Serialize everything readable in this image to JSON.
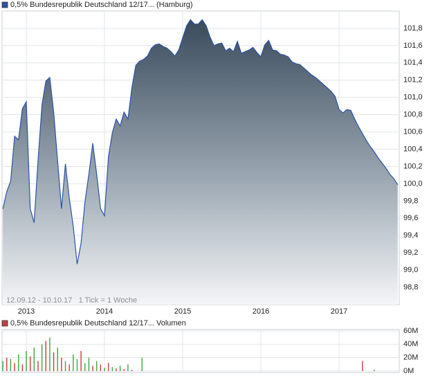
{
  "chart_data": [
    {
      "type": "area",
      "annotation": "12.09.12 - 10.10.17   1 Tick = 1 Woche",
      "xlim": [
        2012.69,
        2017.77
      ],
      "xticks": [
        2013,
        2014,
        2015,
        2016,
        2017
      ],
      "ylim": [
        98.6,
        102.0
      ],
      "yticks": [
        {
          "value": 98.8,
          "label": "98,8"
        },
        {
          "value": 99.0,
          "label": "99,0"
        },
        {
          "value": 99.2,
          "label": "99,2"
        },
        {
          "value": 99.4,
          "label": "99,4"
        },
        {
          "value": 99.6,
          "label": "99,6"
        },
        {
          "value": 99.8,
          "label": "99,8"
        },
        {
          "value": 100.0,
          "label": "100,0"
        },
        {
          "value": 100.2,
          "label": "100,2"
        },
        {
          "value": 100.4,
          "label": "100,4"
        },
        {
          "value": 100.6,
          "label": "100,6"
        },
        {
          "value": 100.8,
          "label": "100,8"
        },
        {
          "value": 101.0,
          "label": "101,0"
        },
        {
          "value": 101.2,
          "label": "101,2"
        },
        {
          "value": 101.4,
          "label": "101,4"
        },
        {
          "value": 101.6,
          "label": "101,6"
        },
        {
          "value": 101.8,
          "label": "101,8"
        }
      ],
      "grid": true,
      "x": [
        2012.7,
        2012.75,
        2012.8,
        2012.85,
        2012.9,
        2012.95,
        2013.0,
        2013.05,
        2013.1,
        2013.15,
        2013.2,
        2013.25,
        2013.3,
        2013.35,
        2013.4,
        2013.45,
        2013.5,
        2013.55,
        2013.6,
        2013.65,
        2013.7,
        2013.75,
        2013.8,
        2013.85,
        2013.9,
        2013.95,
        2014.0,
        2014.05,
        2014.1,
        2014.15,
        2014.2,
        2014.25,
        2014.3,
        2014.35,
        2014.4,
        2014.45,
        2014.5,
        2014.55,
        2014.6,
        2014.65,
        2014.7,
        2014.75,
        2014.8,
        2014.85,
        2014.9,
        2014.95,
        2015.0,
        2015.05,
        2015.1,
        2015.15,
        2015.2,
        2015.25,
        2015.3,
        2015.35,
        2015.4,
        2015.45,
        2015.5,
        2015.55,
        2015.6,
        2015.65,
        2015.7,
        2015.75,
        2015.8,
        2015.85,
        2015.9,
        2015.95,
        2016.0,
        2016.05,
        2016.1,
        2016.15,
        2016.2,
        2016.25,
        2016.3,
        2016.35,
        2016.4,
        2016.45,
        2016.5,
        2016.55,
        2016.6,
        2016.65,
        2016.7,
        2016.75,
        2016.8,
        2016.85,
        2016.9,
        2016.95,
        2017.0,
        2017.05,
        2017.1,
        2017.15,
        2017.2,
        2017.25,
        2017.3,
        2017.35,
        2017.4,
        2017.45,
        2017.5,
        2017.55,
        2017.6,
        2017.65,
        2017.7,
        2017.75
      ],
      "series": [
        {
          "name": "0,5% Bundesrepublik Deutschland 12/17... (Hamburg)",
          "color": "#2a52a8",
          "values": [
            99.71,
            99.91,
            100.03,
            100.55,
            100.51,
            100.87,
            100.95,
            99.71,
            99.55,
            100.27,
            100.91,
            101.19,
            101.23,
            100.83,
            100.27,
            99.71,
            100.23,
            99.83,
            99.51,
            99.07,
            99.31,
            99.79,
            100.11,
            100.47,
            100.11,
            99.71,
            99.63,
            100.31,
            100.59,
            100.75,
            100.67,
            100.83,
            100.75,
            101.11,
            101.37,
            101.42,
            101.44,
            101.48,
            101.57,
            101.61,
            101.62,
            101.59,
            101.57,
            101.53,
            101.48,
            101.55,
            101.69,
            101.83,
            101.9,
            101.85,
            101.85,
            101.9,
            101.83,
            101.7,
            101.6,
            101.62,
            101.63,
            101.54,
            101.57,
            101.53,
            101.65,
            101.51,
            101.53,
            101.55,
            101.58,
            101.52,
            101.47,
            101.61,
            101.66,
            101.55,
            101.54,
            101.5,
            101.49,
            101.47,
            101.41,
            101.39,
            101.38,
            101.34,
            101.3,
            101.26,
            101.23,
            101.19,
            101.15,
            101.11,
            101.07,
            101.01,
            100.86,
            100.82,
            100.86,
            100.85,
            100.75,
            100.66,
            100.58,
            100.5,
            100.43,
            100.37,
            100.3,
            100.24,
            100.18,
            100.11,
            100.06,
            99.99
          ]
        }
      ]
    },
    {
      "type": "bar",
      "xlim": [
        2012.69,
        2017.77
      ],
      "ylim": [
        0,
        60
      ],
      "yticks": [
        {
          "value": 0,
          "label": "0M"
        },
        {
          "value": 20,
          "label": "20M"
        },
        {
          "value": 40,
          "label": "40M"
        },
        {
          "value": 60,
          "label": "60M"
        }
      ],
      "grid": true,
      "x": [
        2012.7,
        2012.75,
        2012.8,
        2012.85,
        2012.9,
        2012.95,
        2013.0,
        2013.05,
        2013.1,
        2013.15,
        2013.2,
        2013.25,
        2013.3,
        2013.35,
        2013.4,
        2013.45,
        2013.5,
        2013.55,
        2013.6,
        2013.65,
        2013.7,
        2013.75,
        2013.8,
        2013.85,
        2013.9,
        2013.95,
        2014.0,
        2014.05,
        2014.1,
        2014.15,
        2014.2,
        2014.25,
        2014.3,
        2014.35,
        2014.48,
        2017.3,
        2017.45
      ],
      "series": [
        {
          "name": "0,5% Bundesrepublik Deutschland 12/17... Volumen",
          "color": "#c04040",
          "values": [
            15,
            20,
            18,
            12,
            25,
            10,
            30,
            22,
            35,
            15,
            40,
            45,
            50,
            28,
            35,
            20,
            15,
            10,
            25,
            18,
            30,
            12,
            20,
            8,
            15,
            10,
            5,
            12,
            6,
            4,
            8,
            3,
            10,
            2,
            20,
            15,
            2
          ],
          "colors": [
            "#3aa63a",
            "#cc3a3a",
            "#3aa63a",
            "#cc3a3a",
            "#3aa63a",
            "#cc3a3a",
            "#3aa63a",
            "#cc3a3a",
            "#3aa63a",
            "#cc3a3a",
            "#3aa63a",
            "#cc3a3a",
            "#3aa63a",
            "#cc3a3a",
            "#3aa63a",
            "#cc3a3a",
            "#3aa63a",
            "#cc3a3a",
            "#3aa63a",
            "#3aa63a",
            "#cc3a3a",
            "#3aa63a",
            "#3aa63a",
            "#cc3a3a",
            "#3aa63a",
            "#cc3a3a",
            "#3aa63a",
            "#cc3a3a",
            "#3aa63a",
            "#cc3a3a",
            "#3aa63a",
            "#cc3a3a",
            "#3aa63a",
            "#cc3a3a",
            "#3aa63a",
            "#cc3a3a",
            "#3aa63a"
          ]
        }
      ]
    }
  ]
}
